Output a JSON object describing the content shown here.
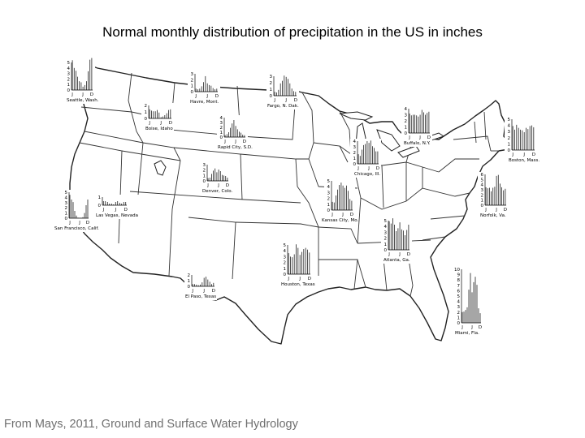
{
  "title": "Normal monthly distribution of precipitation in the US in inches",
  "credit": "From Mays, 2011, Ground and Surface Water Hydrology",
  "month_labels": [
    "J",
    "J",
    "D"
  ],
  "colors": {
    "line": "#222222",
    "background": "#ffffff",
    "credit_text": "#6f6f6f"
  },
  "stations": [
    {
      "name": "Seattle, Wash.",
      "yticks": [
        "5",
        "4",
        "3",
        "2",
        "1",
        "0"
      ],
      "ymax": 5,
      "values": [
        5.4,
        4.0,
        3.5,
        2.4,
        1.6,
        1.4,
        0.6,
        0.9,
        1.6,
        3.4,
        5.5,
        5.8
      ]
    },
    {
      "name": "Havre, Mont.",
      "yticks": [
        "3",
        "2",
        "1",
        "0"
      ],
      "ymax": 3,
      "values": [
        0.5,
        0.4,
        0.5,
        0.9,
        1.6,
        2.6,
        1.4,
        1.1,
        1.0,
        0.6,
        0.4,
        0.5
      ]
    },
    {
      "name": "Fargo, N. Dak.",
      "yticks": [
        "3",
        "2",
        "1",
        "0"
      ],
      "ymax": 3,
      "values": [
        0.6,
        0.5,
        0.9,
        1.9,
        2.3,
        3.1,
        2.9,
        2.6,
        1.9,
        1.1,
        0.7,
        0.6
      ]
    },
    {
      "name": "Boise, Idaho",
      "yticks": [
        "2",
        "1",
        "0"
      ],
      "ymax": 2,
      "values": [
        1.4,
        1.2,
        1.1,
        1.1,
        1.3,
        0.9,
        0.2,
        0.3,
        0.5,
        0.8,
        1.3,
        1.4
      ]
    },
    {
      "name": "Rapid City, S.D.",
      "yticks": [
        "4",
        "3",
        "2",
        "1",
        "0"
      ],
      "ymax": 4,
      "values": [
        0.4,
        0.6,
        1.0,
        1.9,
        2.8,
        3.5,
        2.3,
        1.6,
        1.1,
        0.9,
        0.5,
        0.4
      ]
    },
    {
      "name": "Buffalo, N.Y.",
      "yticks": [
        "4",
        "3",
        "2",
        "1",
        "0"
      ],
      "ymax": 4,
      "values": [
        3.2,
        2.9,
        3.0,
        3.0,
        2.9,
        2.7,
        3.0,
        3.8,
        3.4,
        3.0,
        3.3,
        3.5
      ]
    },
    {
      "name": "Boston, Mass.",
      "yticks": [
        "5",
        "4",
        "3",
        "2",
        "1",
        "0"
      ],
      "ymax": 5,
      "values": [
        3.9,
        3.3,
        4.1,
        3.6,
        3.3,
        3.2,
        2.9,
        3.6,
        3.4,
        3.9,
        4.0,
        3.7
      ]
    },
    {
      "name": "Chicago, Ill.",
      "yticks": [
        "4",
        "3",
        "2",
        "1",
        "0"
      ],
      "ymax": 4,
      "values": [
        1.7,
        1.4,
        2.5,
        3.3,
        3.5,
        4.0,
        3.7,
        4.1,
        3.1,
        2.8,
        2.2,
        2.2
      ]
    },
    {
      "name": "Denver, Colo.",
      "yticks": [
        "3",
        "2",
        "1",
        "0"
      ],
      "ymax": 3,
      "values": [
        0.5,
        0.6,
        1.3,
        1.9,
        2.3,
        1.6,
        2.1,
        1.8,
        1.1,
        1.0,
        0.9,
        0.6
      ]
    },
    {
      "name": "Las Vegas, Nevada",
      "yticks": [
        "1",
        "0"
      ],
      "ymax": 1,
      "values": [
        0.5,
        0.5,
        0.4,
        0.2,
        0.2,
        0.1,
        0.4,
        0.5,
        0.3,
        0.2,
        0.4,
        0.4
      ]
    },
    {
      "name": "San Francisco, Calif.",
      "yticks": [
        "5",
        "4",
        "3",
        "2",
        "1",
        "0"
      ],
      "ymax": 5,
      "values": [
        4.5,
        3.6,
        3.1,
        1.4,
        0.5,
        0.1,
        0.05,
        0.05,
        0.2,
        1.0,
        2.5,
        3.6
      ]
    },
    {
      "name": "Kansas City, Mo.",
      "yticks": [
        "5",
        "4",
        "3",
        "2",
        "1",
        "0"
      ],
      "ymax": 5,
      "values": [
        1.4,
        1.3,
        2.5,
        3.5,
        4.3,
        4.7,
        4.2,
        3.8,
        4.2,
        3.3,
        1.9,
        1.6
      ]
    },
    {
      "name": "Norfolk, Va.",
      "yticks": [
        "6",
        "5",
        "4",
        "3",
        "2",
        "1",
        "0"
      ],
      "ymax": 6,
      "values": [
        3.5,
        3.3,
        3.4,
        2.7,
        3.4,
        3.6,
        5.7,
        5.9,
        4.2,
        3.5,
        2.9,
        3.2
      ]
    },
    {
      "name": "Atlanta, Ga.",
      "yticks": [
        "5",
        "4",
        "3",
        "2",
        "1",
        "0"
      ],
      "ymax": 5,
      "values": [
        4.9,
        4.5,
        5.4,
        4.3,
        3.2,
        3.7,
        4.7,
        3.5,
        3.3,
        2.5,
        3.4,
        4.3
      ]
    },
    {
      "name": "Houston, Texas",
      "yticks": [
        "5",
        "4",
        "3",
        "2",
        "1",
        "0"
      ],
      "ymax": 5,
      "values": [
        3.6,
        3.0,
        2.9,
        3.4,
        5.1,
        4.5,
        3.3,
        3.8,
        4.3,
        4.5,
        4.2,
        3.7
      ]
    },
    {
      "name": "El Paso, Texas",
      "yticks": [
        "2",
        "1",
        "0"
      ],
      "ymax": 2,
      "values": [
        0.4,
        0.4,
        0.3,
        0.2,
        0.3,
        0.7,
        1.5,
        1.7,
        1.2,
        0.8,
        0.4,
        0.6
      ]
    },
    {
      "name": "Miami, Fla.",
      "yticks": [
        "10",
        "9",
        "8",
        "7",
        "6",
        "5",
        "4",
        "3",
        "2",
        "1",
        "0"
      ],
      "ymax": 10,
      "values": [
        2.0,
        2.1,
        2.4,
        2.9,
        6.2,
        9.3,
        5.7,
        7.6,
        8.6,
        7.1,
        2.7,
        1.8
      ]
    }
  ]
}
